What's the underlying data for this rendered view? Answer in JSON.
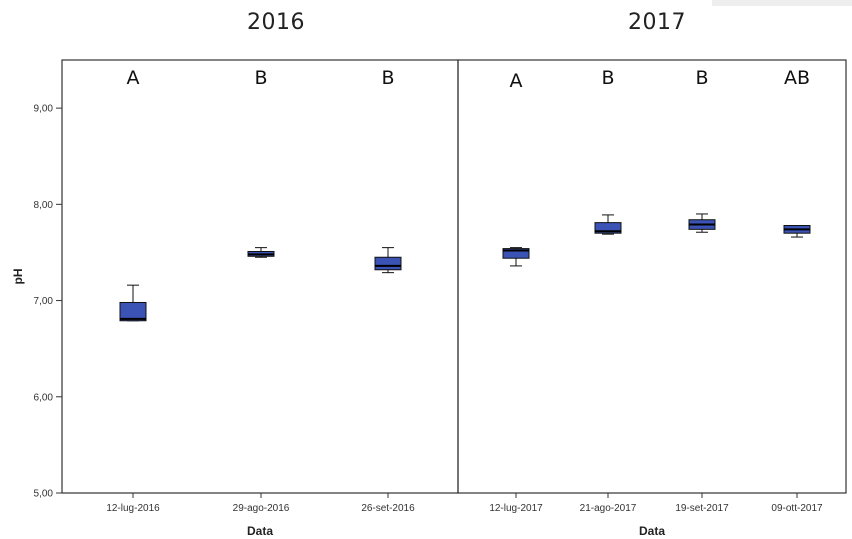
{
  "chart_data": {
    "type": "boxplot",
    "ylabel": "pH",
    "ylim": [
      5,
      9.5
    ],
    "yticks": [
      {
        "value": 5,
        "label": "5,00"
      },
      {
        "value": 6,
        "label": "6,00"
      },
      {
        "value": 7,
        "label": "7,00"
      },
      {
        "value": 8,
        "label": "8,00"
      },
      {
        "value": 9,
        "label": "9,00"
      }
    ],
    "box_color": "#3a53b4",
    "panels": [
      {
        "title": "2016",
        "xlabel": "Data",
        "groups": [
          {
            "label": "12-lug-2016",
            "letter": "A",
            "min": 6.79,
            "q1": 6.79,
            "median": 6.81,
            "q3": 6.98,
            "max": 7.16
          },
          {
            "label": "29-ago-2016",
            "letter": "B",
            "min": 7.45,
            "q1": 7.46,
            "median": 7.48,
            "q3": 7.51,
            "max": 7.55
          },
          {
            "label": "26-set-2016",
            "letter": "B",
            "min": 7.29,
            "q1": 7.32,
            "median": 7.36,
            "q3": 7.45,
            "max": 7.55
          }
        ]
      },
      {
        "title": "2017",
        "xlabel": "Data",
        "groups": [
          {
            "label": "12-lug-2017",
            "letter": "A",
            "min": 7.36,
            "q1": 7.44,
            "median": 7.52,
            "q3": 7.54,
            "max": 7.55
          },
          {
            "label": "21-ago-2017",
            "letter": "B",
            "min": 7.69,
            "q1": 7.7,
            "median": 7.72,
            "q3": 7.81,
            "max": 7.89
          },
          {
            "label": "19-set-2017",
            "letter": "B",
            "min": 7.71,
            "q1": 7.74,
            "median": 7.79,
            "q3": 7.84,
            "max": 7.9
          },
          {
            "label": "09-ott-2017",
            "letter": "AB",
            "min": 7.66,
            "q1": 7.7,
            "median": 7.74,
            "q3": 7.78,
            "max": 7.78
          }
        ]
      }
    ]
  }
}
